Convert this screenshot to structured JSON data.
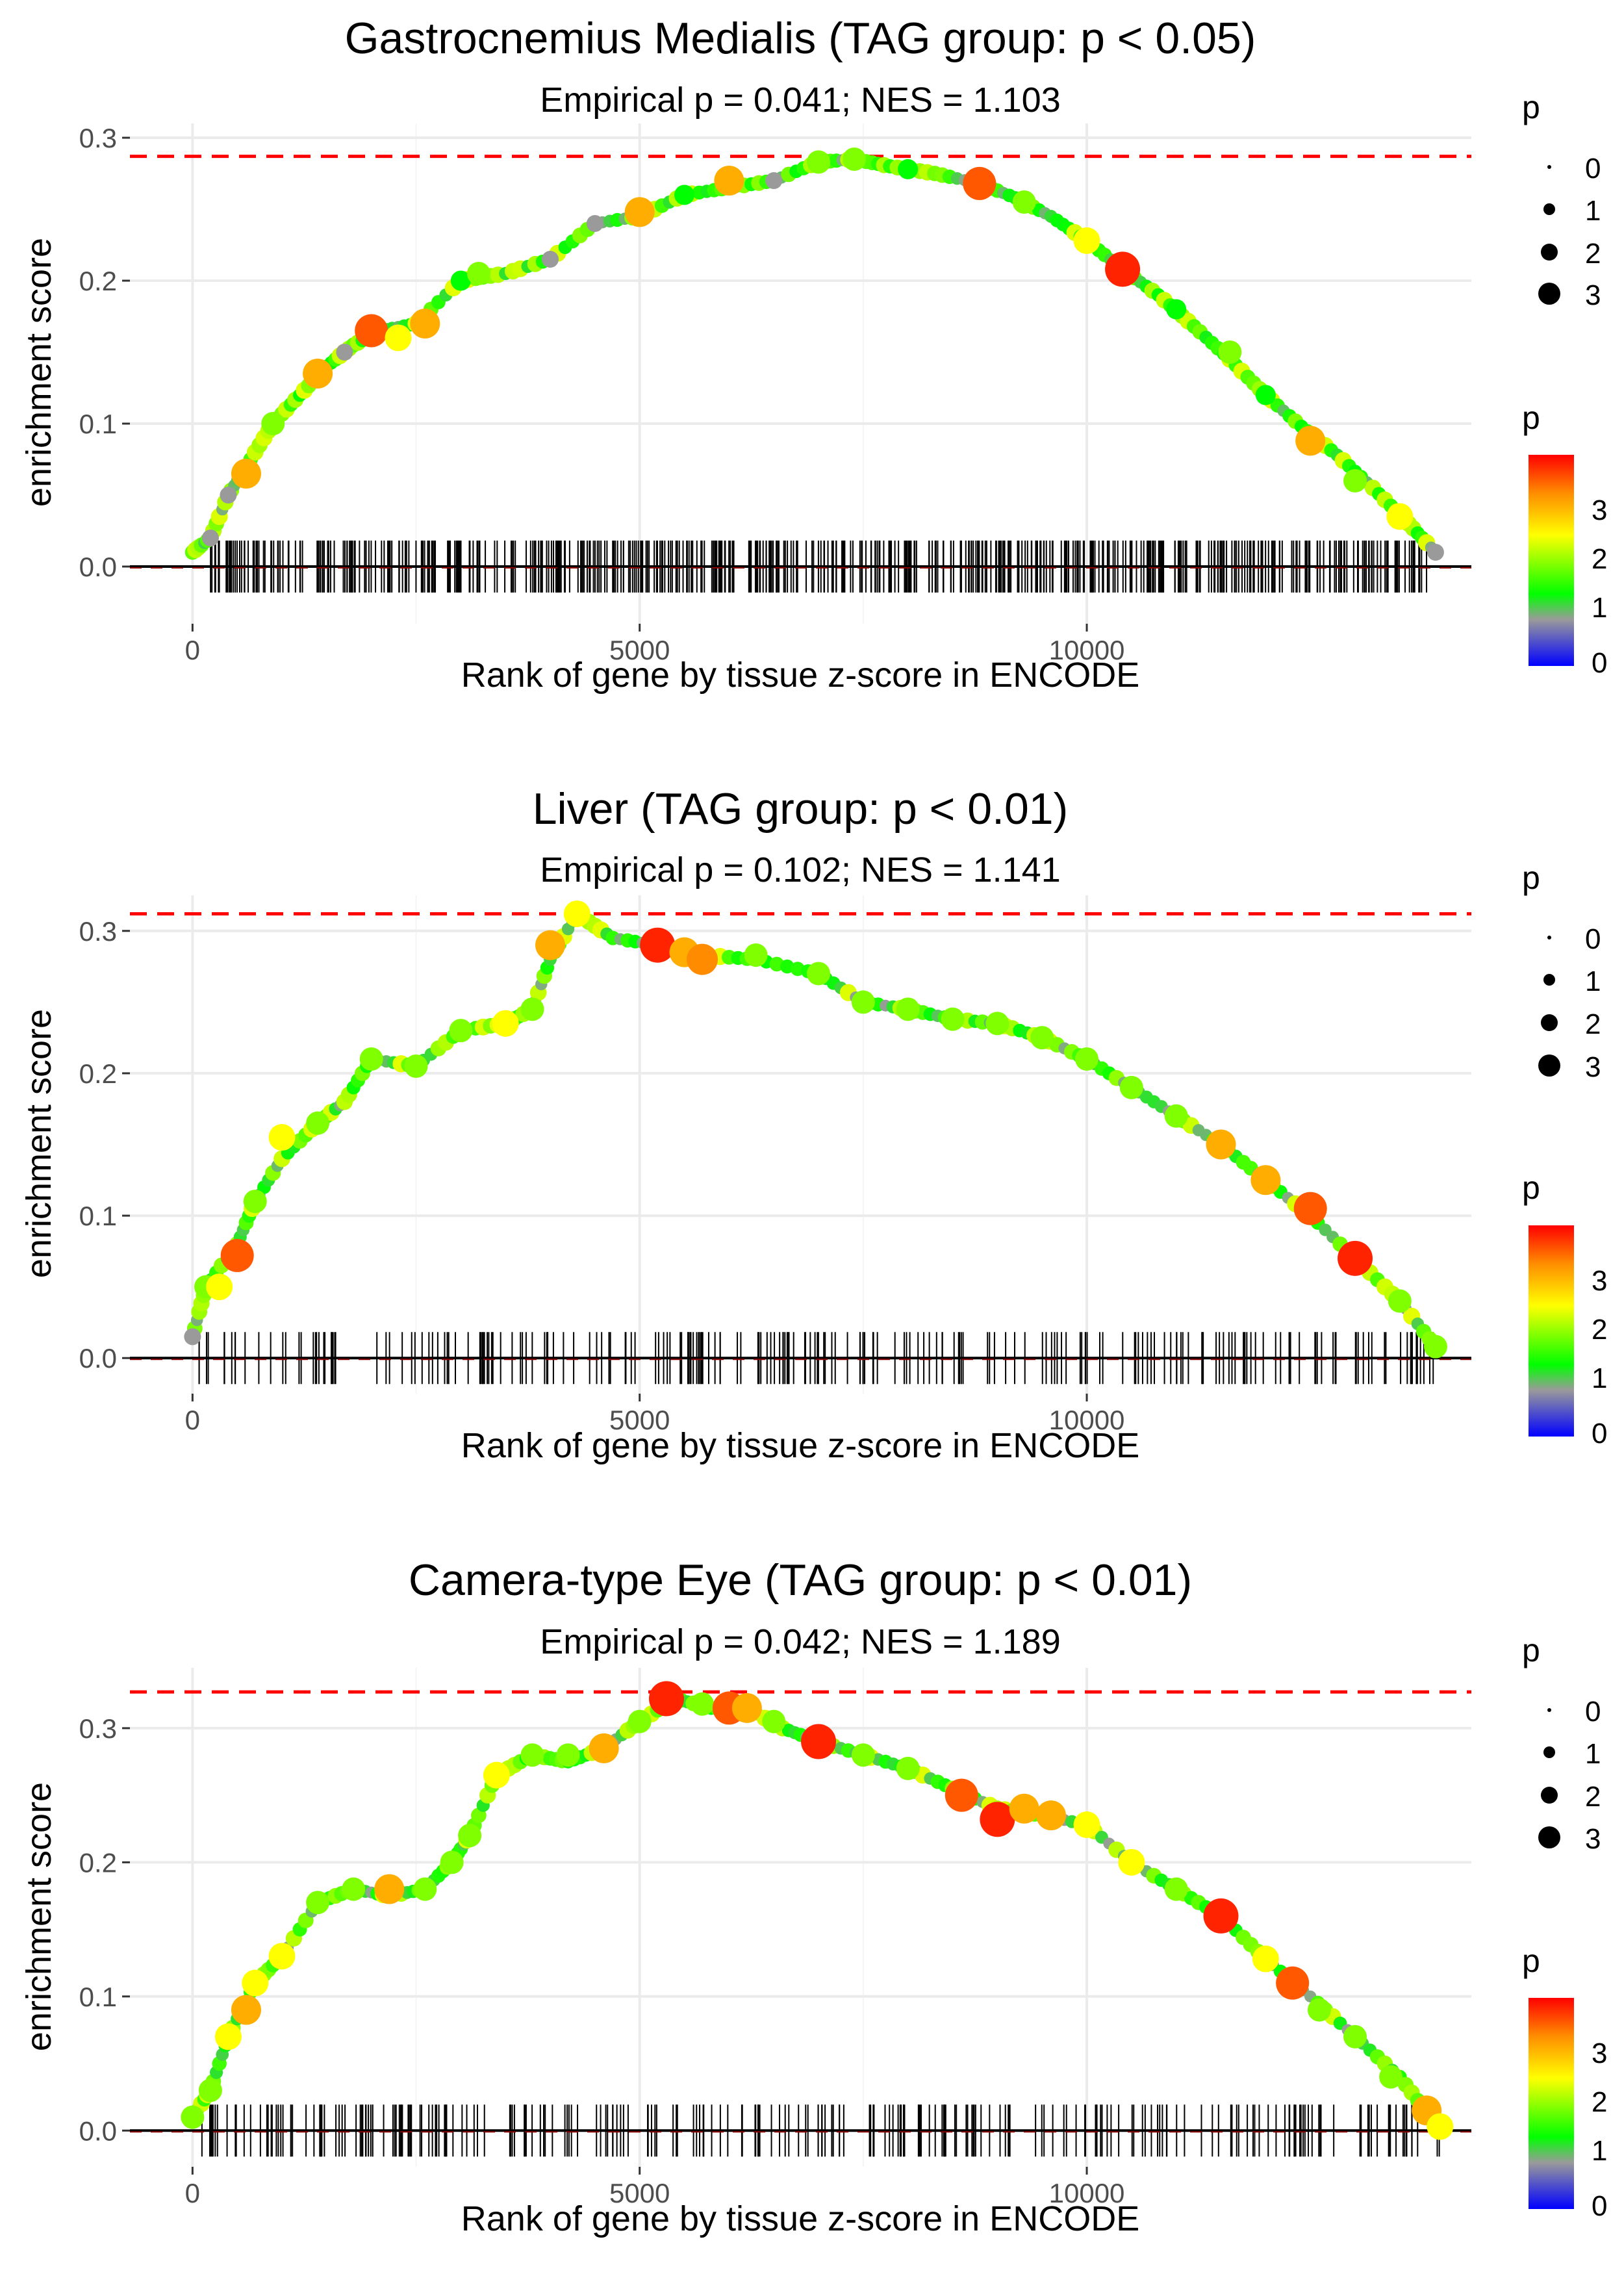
{
  "chart_data": [
    {
      "type": "line",
      "title": "Gastrocnemius Medialis (TAG group: p < 0.05)",
      "subtitle": "Empirical p = 0.041; NES = 1.103",
      "xlabel": "Rank of gene by tissue z-score in ENCODE",
      "ylabel": "enrichment score",
      "xlim": [
        -700,
        14300
      ],
      "ylim": [
        -0.04,
        0.31
      ],
      "xticks": [
        0,
        5000,
        10000
      ],
      "xtick_labels": [
        "0",
        "5000",
        "10000"
      ],
      "yticks": [
        0.0,
        0.1,
        0.2,
        0.3
      ],
      "ytick_labels": [
        "0.0",
        "0.1",
        "0.2",
        "0.3"
      ],
      "max_es_line": 0.287,
      "curve": [
        [
          0,
          0.01
        ],
        [
          200,
          0.02
        ],
        [
          400,
          0.05
        ],
        [
          600,
          0.07
        ],
        [
          900,
          0.1
        ],
        [
          1200,
          0.12
        ],
        [
          1500,
          0.14
        ],
        [
          1800,
          0.155
        ],
        [
          2100,
          0.165
        ],
        [
          2500,
          0.17
        ],
        [
          3000,
          0.2
        ],
        [
          3500,
          0.205
        ],
        [
          4000,
          0.215
        ],
        [
          4500,
          0.24
        ],
        [
          5000,
          0.245
        ],
        [
          5500,
          0.26
        ],
        [
          6000,
          0.265
        ],
        [
          6500,
          0.27
        ],
        [
          7000,
          0.283
        ],
        [
          7400,
          0.285
        ],
        [
          7800,
          0.28
        ],
        [
          8300,
          0.275
        ],
        [
          8800,
          0.268
        ],
        [
          9200,
          0.258
        ],
        [
          9600,
          0.245
        ],
        [
          10000,
          0.228
        ],
        [
          10400,
          0.208
        ],
        [
          10800,
          0.19
        ],
        [
          11200,
          0.168
        ],
        [
          11600,
          0.145
        ],
        [
          12000,
          0.12
        ],
        [
          12400,
          0.098
        ],
        [
          12800,
          0.078
        ],
        [
          13200,
          0.055
        ],
        [
          13600,
          0.03
        ],
        [
          13900,
          0.01
        ]
      ],
      "points": [
        [
          200,
          0.02,
          1
        ],
        [
          400,
          0.05,
          1
        ],
        [
          600,
          0.065,
          3
        ],
        [
          900,
          0.1,
          2
        ],
        [
          1400,
          0.135,
          3
        ],
        [
          1700,
          0.15,
          1
        ],
        [
          2000,
          0.165,
          3.5
        ],
        [
          2300,
          0.16,
          2.5
        ],
        [
          2600,
          0.17,
          3
        ],
        [
          3000,
          0.2,
          1.5
        ],
        [
          3200,
          0.205,
          2
        ],
        [
          4000,
          0.215,
          1
        ],
        [
          4500,
          0.24,
          1
        ],
        [
          5000,
          0.248,
          3
        ],
        [
          5500,
          0.26,
          1.5
        ],
        [
          6000,
          0.27,
          3
        ],
        [
          6500,
          0.27,
          1
        ],
        [
          7000,
          0.283,
          2
        ],
        [
          7400,
          0.285,
          2
        ],
        [
          8000,
          0.278,
          1.5
        ],
        [
          8800,
          0.268,
          3.5
        ],
        [
          9300,
          0.255,
          2
        ],
        [
          10000,
          0.228,
          2.5
        ],
        [
          10400,
          0.208,
          3.8
        ],
        [
          11000,
          0.18,
          1.5
        ],
        [
          11600,
          0.15,
          2
        ],
        [
          12000,
          0.12,
          1.5
        ],
        [
          12500,
          0.088,
          3
        ],
        [
          13000,
          0.06,
          2
        ],
        [
          13500,
          0.035,
          2.5
        ],
        [
          13900,
          0.01,
          1
        ]
      ],
      "n_ticks": 560,
      "tick_xmin": 200,
      "tick_xmax": 13800,
      "legend_size": {
        "title": "p",
        "labels": [
          "0",
          "1",
          "2",
          "3"
        ]
      },
      "legend_color": {
        "title": "p",
        "labels": [
          "3",
          "2",
          "1",
          "0"
        ]
      }
    },
    {
      "type": "line",
      "title": "Liver (TAG group: p < 0.01)",
      "subtitle": "Empirical p = 0.102; NES = 1.141",
      "xlabel": "Rank of gene by tissue z-score in ENCODE",
      "ylabel": "enrichment score",
      "xlim": [
        -700,
        14300
      ],
      "ylim": [
        -0.025,
        0.325
      ],
      "xticks": [
        0,
        5000,
        10000
      ],
      "xtick_labels": [
        "0",
        "5000",
        "10000"
      ],
      "yticks": [
        0.0,
        0.1,
        0.2,
        0.3
      ],
      "ytick_labels": [
        "0.0",
        "0.1",
        "0.2",
        "0.3"
      ],
      "max_es_line": 0.312,
      "curve": [
        [
          0,
          0.015
        ],
        [
          150,
          0.05
        ],
        [
          500,
          0.08
        ],
        [
          700,
          0.11
        ],
        [
          1000,
          0.14
        ],
        [
          1400,
          0.165
        ],
        [
          1700,
          0.18
        ],
        [
          2000,
          0.21
        ],
        [
          2500,
          0.205
        ],
        [
          3000,
          0.23
        ],
        [
          3500,
          0.235
        ],
        [
          3800,
          0.245
        ],
        [
          4000,
          0.28
        ],
        [
          4300,
          0.312
        ],
        [
          4700,
          0.295
        ],
        [
          5200,
          0.29
        ],
        [
          5700,
          0.283
        ],
        [
          6300,
          0.28
        ],
        [
          7000,
          0.27
        ],
        [
          7500,
          0.25
        ],
        [
          8000,
          0.245
        ],
        [
          8500,
          0.238
        ],
        [
          9000,
          0.235
        ],
        [
          9500,
          0.225
        ],
        [
          10000,
          0.21
        ],
        [
          10500,
          0.19
        ],
        [
          11000,
          0.17
        ],
        [
          11500,
          0.15
        ],
        [
          12000,
          0.125
        ],
        [
          12500,
          0.1
        ],
        [
          13000,
          0.07
        ],
        [
          13500,
          0.04
        ],
        [
          13900,
          0.008
        ]
      ],
      "points": [
        [
          0,
          0.015,
          1
        ],
        [
          150,
          0.05,
          2
        ],
        [
          300,
          0.05,
          2.5
        ],
        [
          500,
          0.072,
          3.5
        ],
        [
          700,
          0.11,
          2
        ],
        [
          1000,
          0.155,
          2.5
        ],
        [
          1400,
          0.165,
          2
        ],
        [
          2000,
          0.21,
          2
        ],
        [
          2500,
          0.205,
          2
        ],
        [
          3000,
          0.23,
          2
        ],
        [
          3500,
          0.235,
          2.5
        ],
        [
          3800,
          0.245,
          2
        ],
        [
          4000,
          0.29,
          3
        ],
        [
          4300,
          0.312,
          2.5
        ],
        [
          5200,
          0.29,
          3.8
        ],
        [
          5500,
          0.285,
          3
        ],
        [
          5700,
          0.28,
          3.2
        ],
        [
          6300,
          0.283,
          2
        ],
        [
          7000,
          0.27,
          2
        ],
        [
          7500,
          0.25,
          2
        ],
        [
          8000,
          0.245,
          2
        ],
        [
          8500,
          0.238,
          2
        ],
        [
          9000,
          0.235,
          2
        ],
        [
          9500,
          0.225,
          2
        ],
        [
          10000,
          0.21,
          2
        ],
        [
          10500,
          0.19,
          2
        ],
        [
          11000,
          0.17,
          2
        ],
        [
          11500,
          0.15,
          3
        ],
        [
          12000,
          0.125,
          3
        ],
        [
          12500,
          0.105,
          3.5
        ],
        [
          13000,
          0.07,
          3.8
        ],
        [
          13500,
          0.04,
          2
        ],
        [
          13900,
          0.008,
          2
        ]
      ],
      "n_ticks": 230,
      "tick_xmin": 50,
      "tick_xmax": 13950,
      "legend_size": {
        "title": "p",
        "labels": [
          "0",
          "1",
          "2",
          "3"
        ]
      },
      "legend_color": {
        "title": "p",
        "labels": [
          "3",
          "2",
          "1",
          "0"
        ]
      }
    },
    {
      "type": "line",
      "title": "Camera-type Eye (TAG group: p < 0.01)",
      "subtitle": "Empirical p = 0.042; NES = 1.189",
      "xlabel": "Rank of gene by tissue z-score in ENCODE",
      "ylabel": "enrichment score",
      "xlim": [
        -700,
        14300
      ],
      "ylim": [
        -0.027,
        0.345
      ],
      "xticks": [
        0,
        5000,
        10000
      ],
      "xtick_labels": [
        "0",
        "5000",
        "10000"
      ],
      "yticks": [
        0.0,
        0.1,
        0.2,
        0.3
      ],
      "ytick_labels": [
        "0.0",
        "0.1",
        "0.2",
        "0.3"
      ],
      "max_es_line": 0.327,
      "curve": [
        [
          0,
          0.01
        ],
        [
          200,
          0.03
        ],
        [
          400,
          0.07
        ],
        [
          700,
          0.11
        ],
        [
          1000,
          0.13
        ],
        [
          1400,
          0.17
        ],
        [
          1800,
          0.18
        ],
        [
          2200,
          0.175
        ],
        [
          2600,
          0.18
        ],
        [
          2900,
          0.2
        ],
        [
          3100,
          0.22
        ],
        [
          3400,
          0.265
        ],
        [
          3800,
          0.28
        ],
        [
          4200,
          0.275
        ],
        [
          4600,
          0.285
        ],
        [
          5000,
          0.305
        ],
        [
          5400,
          0.322
        ],
        [
          5800,
          0.315
        ],
        [
          6200,
          0.315
        ],
        [
          6600,
          0.3
        ],
        [
          7000,
          0.29
        ],
        [
          7500,
          0.28
        ],
        [
          8000,
          0.27
        ],
        [
          8500,
          0.255
        ],
        [
          9000,
          0.24
        ],
        [
          9500,
          0.235
        ],
        [
          10000,
          0.228
        ],
        [
          10500,
          0.2
        ],
        [
          11000,
          0.18
        ],
        [
          11500,
          0.16
        ],
        [
          12000,
          0.128
        ],
        [
          12500,
          0.1
        ],
        [
          13000,
          0.07
        ],
        [
          13500,
          0.04
        ],
        [
          13900,
          0.005
        ]
      ],
      "points": [
        [
          0,
          0.01,
          2
        ],
        [
          200,
          0.03,
          2
        ],
        [
          400,
          0.07,
          2.5
        ],
        [
          600,
          0.09,
          3
        ],
        [
          700,
          0.11,
          2.5
        ],
        [
          1000,
          0.13,
          2.5
        ],
        [
          1400,
          0.17,
          2
        ],
        [
          1800,
          0.18,
          2
        ],
        [
          2200,
          0.18,
          3
        ],
        [
          2600,
          0.18,
          2
        ],
        [
          2900,
          0.2,
          2
        ],
        [
          3100,
          0.22,
          2
        ],
        [
          3400,
          0.265,
          2.5
        ],
        [
          3800,
          0.28,
          2
        ],
        [
          4200,
          0.28,
          2
        ],
        [
          4600,
          0.285,
          3
        ],
        [
          5000,
          0.305,
          2
        ],
        [
          5300,
          0.322,
          3.8
        ],
        [
          5700,
          0.318,
          2
        ],
        [
          6000,
          0.315,
          3.5
        ],
        [
          6200,
          0.315,
          3
        ],
        [
          6500,
          0.305,
          2
        ],
        [
          7000,
          0.29,
          3.8
        ],
        [
          7500,
          0.28,
          2
        ],
        [
          8000,
          0.27,
          2
        ],
        [
          8600,
          0.25,
          3.5
        ],
        [
          9000,
          0.232,
          3.8
        ],
        [
          9300,
          0.24,
          3
        ],
        [
          9600,
          0.235,
          3
        ],
        [
          10000,
          0.228,
          2.5
        ],
        [
          10500,
          0.2,
          2.5
        ],
        [
          11000,
          0.18,
          2
        ],
        [
          11500,
          0.16,
          3.8
        ],
        [
          12000,
          0.128,
          2.5
        ],
        [
          12300,
          0.11,
          3.5
        ],
        [
          12600,
          0.09,
          2
        ],
        [
          13000,
          0.07,
          2
        ],
        [
          13400,
          0.04,
          2
        ],
        [
          13800,
          0.015,
          3
        ],
        [
          13950,
          0.003,
          2.5
        ]
      ],
      "n_ticks": 260,
      "tick_xmin": 80,
      "tick_xmax": 13950,
      "legend_size": {
        "title": "p",
        "labels": [
          "0",
          "1",
          "2",
          "3"
        ]
      },
      "legend_color": {
        "title": "p",
        "labels": [
          "3",
          "2",
          "1",
          "0"
        ]
      }
    }
  ]
}
